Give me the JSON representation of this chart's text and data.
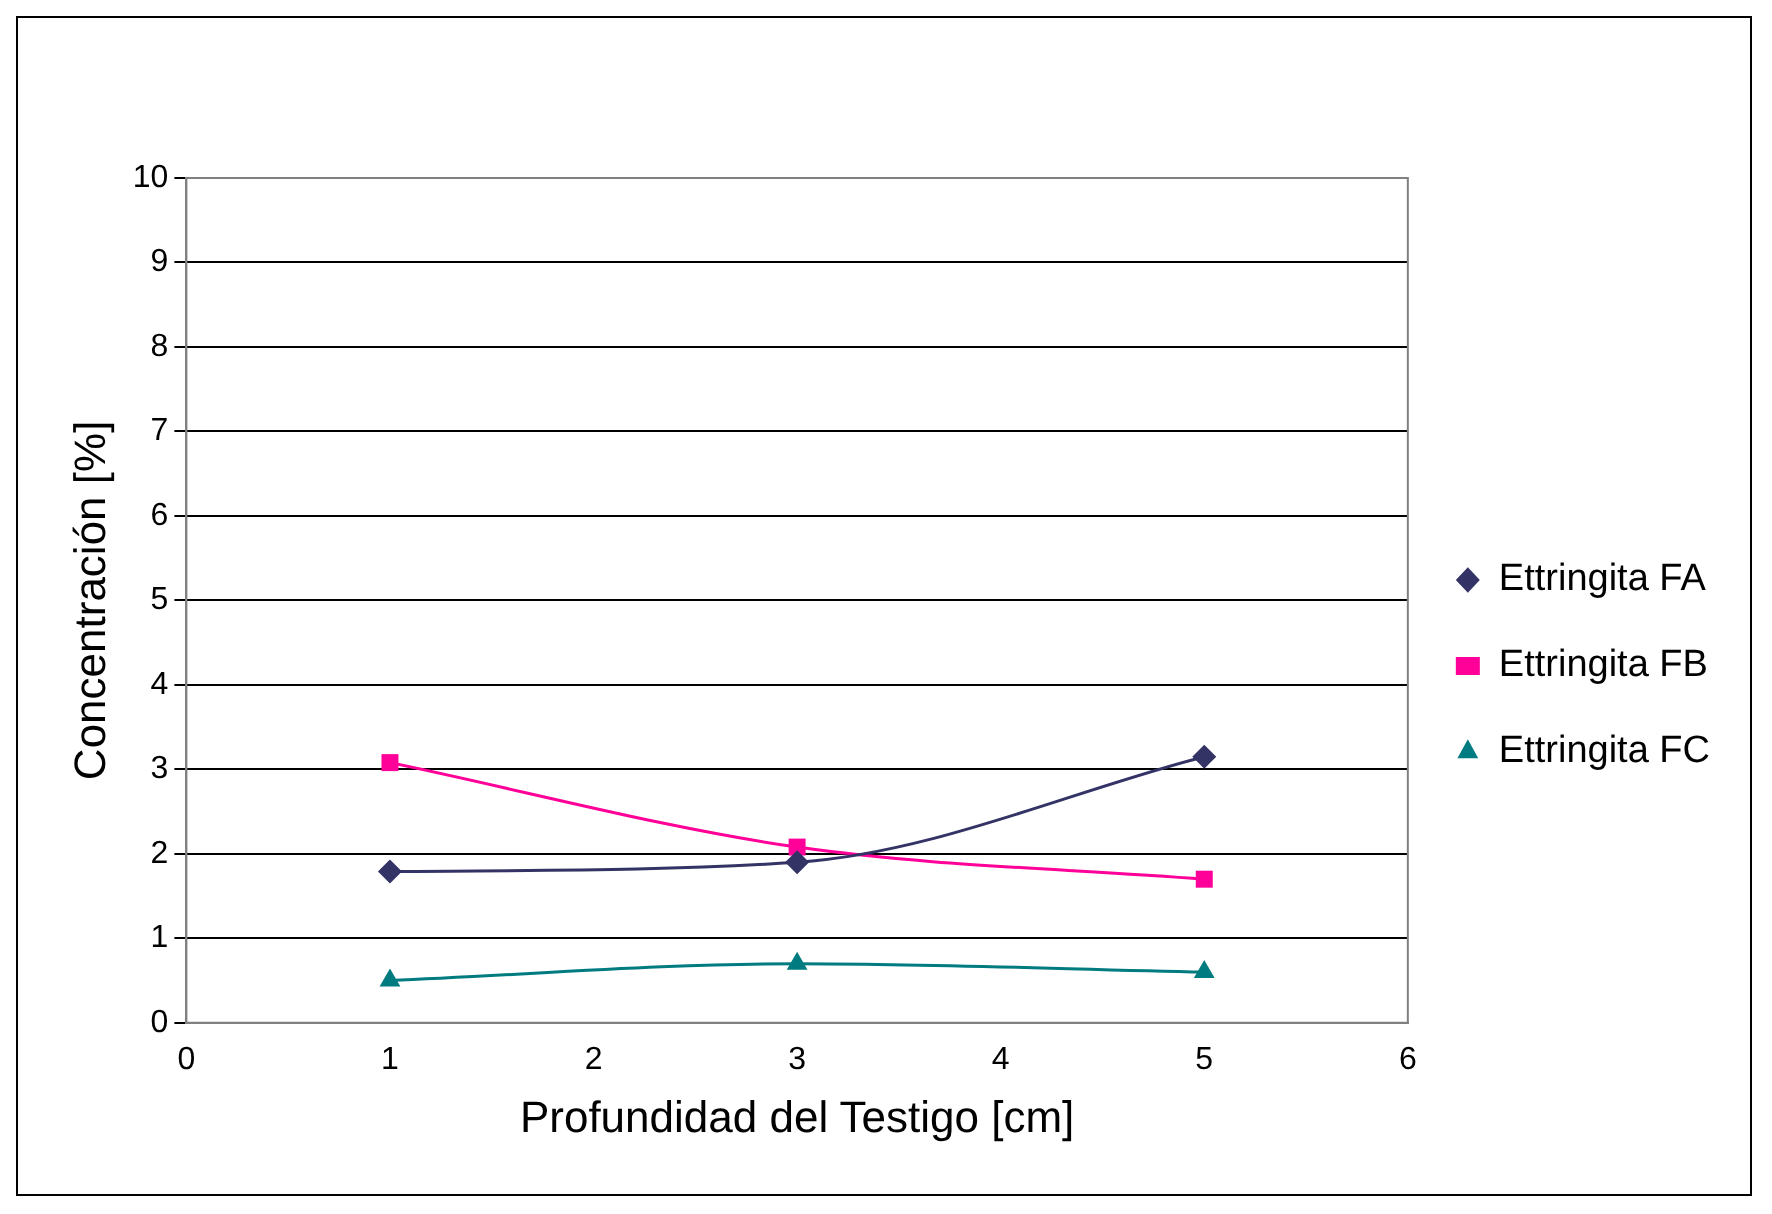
{
  "chart_data": {
    "type": "line",
    "xlabel": "Profundidad del Testigo [cm]",
    "ylabel": "Concentración [%]",
    "x": [
      1,
      3,
      5
    ],
    "series": [
      {
        "name": "Ettringita FA",
        "color": "#333366",
        "marker": "diamond",
        "values": [
          1.79,
          1.9,
          3.15
        ]
      },
      {
        "name": "Ettringita FB",
        "color": "#ff0099",
        "marker": "square",
        "values": [
          3.08,
          2.08,
          1.7
        ]
      },
      {
        "name": "Ettringita FC",
        "color": "#007b7f",
        "marker": "triangle",
        "values": [
          0.5,
          0.7,
          0.6
        ]
      }
    ],
    "xlim": [
      0,
      6
    ],
    "xticks": [
      0,
      1,
      2,
      3,
      4,
      5,
      6
    ],
    "ylim": [
      0,
      10
    ],
    "yticks": [
      0,
      1,
      2,
      3,
      4,
      5,
      6,
      7,
      8,
      9,
      10
    ],
    "grid": "y",
    "legend": "right",
    "line_style": "solid"
  }
}
